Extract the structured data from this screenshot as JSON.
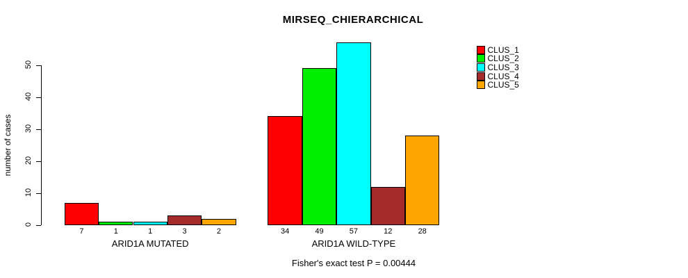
{
  "chart_data": {
    "type": "bar",
    "title": "MIRSEQ_CHIERARCHICAL",
    "ylabel": "number of cases",
    "xlabel": "",
    "caption": "Fisher's exact test P = 0.00444",
    "ylim": [
      0,
      57
    ],
    "yticks": [
      0,
      10,
      20,
      30,
      40,
      50
    ],
    "grid": false,
    "legend_position": "right",
    "categories": [
      "ARID1A MUTATED",
      "ARID1A WILD-TYPE"
    ],
    "series": [
      {
        "name": "CLUS_1",
        "color": "#FF0000",
        "values": [
          7,
          34
        ]
      },
      {
        "name": "CLUS_2",
        "color": "#00EE00",
        "values": [
          1,
          49
        ]
      },
      {
        "name": "CLUS_3",
        "color": "#00FFFF",
        "values": [
          1,
          57
        ]
      },
      {
        "name": "CLUS_4",
        "color": "#A52A2A",
        "values": [
          3,
          12
        ]
      },
      {
        "name": "CLUS_5",
        "color": "#FFA500",
        "values": [
          2,
          28
        ]
      }
    ],
    "bar_value_labels": {
      "ARID1A MUTATED": [
        7,
        1,
        1,
        3,
        2
      ],
      "ARID1A WILD-TYPE": [
        34,
        49,
        57,
        12,
        28
      ]
    },
    "axis_color": "#000000",
    "background_color": "#FFFFFF"
  }
}
